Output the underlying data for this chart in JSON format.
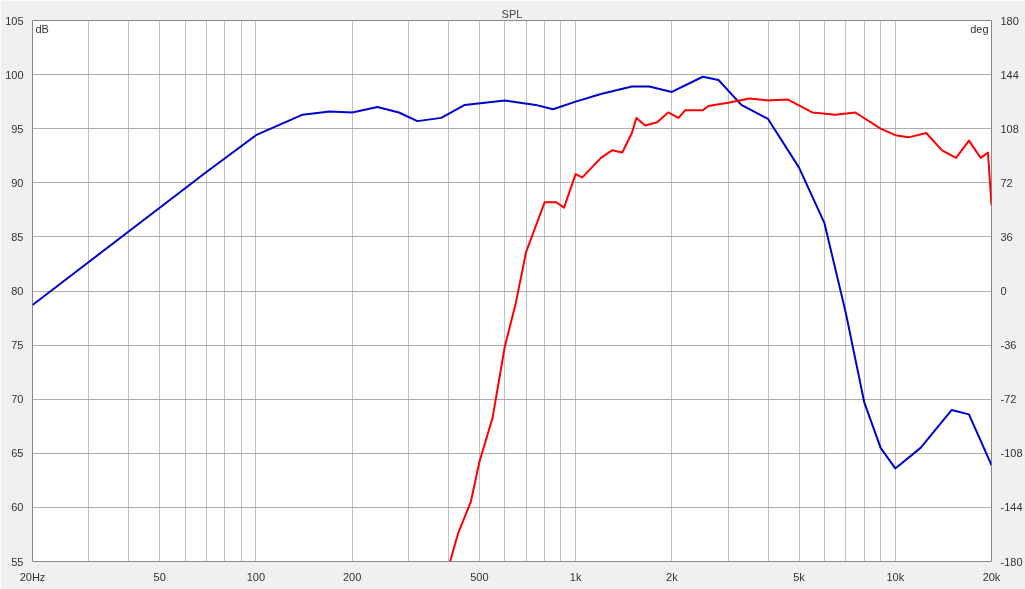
{
  "chart_data": {
    "type": "line",
    "title": "SPL",
    "ylabel": "dB",
    "y2label": "deg",
    "log": "x",
    "grid": true,
    "xlim": [
      20,
      20000
    ],
    "xticks": [
      {
        "value": 20,
        "label": "20Hz"
      },
      {
        "value": 30,
        "label": null
      },
      {
        "value": 40,
        "label": null
      },
      50,
      {
        "value": 60,
        "label": null
      },
      {
        "value": 70,
        "label": null
      },
      {
        "value": 80,
        "label": null
      },
      {
        "value": 90,
        "label": null
      },
      100,
      200,
      {
        "value": 300,
        "label": null
      },
      {
        "value": 400,
        "label": null
      },
      500,
      {
        "value": 600,
        "label": null
      },
      {
        "value": 700,
        "label": null
      },
      {
        "value": 800,
        "label": null
      },
      {
        "value": 900,
        "label": null
      },
      {
        "value": 1000,
        "label": "1k"
      },
      {
        "value": 2000,
        "label": "2k"
      },
      {
        "value": 3000,
        "label": null
      },
      {
        "value": 4000,
        "label": null
      },
      {
        "value": 5000,
        "label": "5k"
      },
      {
        "value": 6000,
        "label": null
      },
      {
        "value": 7000,
        "label": null
      },
      {
        "value": 8000,
        "label": null
      },
      {
        "value": 9000,
        "label": null
      },
      {
        "value": 10000,
        "label": "10k"
      },
      {
        "value": 20000,
        "label": "20k"
      }
    ],
    "ylim": [
      55,
      105
    ],
    "yticks": [
      55,
      60,
      65,
      70,
      75,
      80,
      85,
      90,
      95,
      100,
      105
    ],
    "y2lim": [
      -180,
      180
    ],
    "y2ticks": [
      -180,
      -144,
      -108,
      -72,
      -36,
      0,
      36,
      72,
      108,
      144,
      180
    ],
    "series": [
      {
        "color": "#0000cc",
        "x": [
          20,
          50,
          70,
          100,
          140,
          170,
          200,
          240,
          280,
          320,
          380,
          450,
          600,
          750,
          850,
          1000,
          1200,
          1500,
          1700,
          2000,
          2500,
          2800,
          3300,
          4000,
          5000,
          6000,
          7000,
          8000,
          9000,
          10000,
          12000,
          15000,
          17000,
          20000
        ],
        "values": [
          78.7,
          87.7,
          91.0,
          94.4,
          96.3,
          96.6,
          96.5,
          97.0,
          96.5,
          95.7,
          96.0,
          97.2,
          97.6,
          97.2,
          96.8,
          97.5,
          98.2,
          98.9,
          98.9,
          98.4,
          99.8,
          99.5,
          97.2,
          95.9,
          91.4,
          86.3,
          78.0,
          69.7,
          65.5,
          63.6,
          65.5,
          69.0,
          68.6,
          63.9
        ]
      },
      {
        "color": "#ff0000",
        "x": [
          405,
          430,
          470,
          500,
          550,
          600,
          650,
          700,
          800,
          870,
          920,
          1000,
          1050,
          1200,
          1300,
          1400,
          1500,
          1550,
          1650,
          1800,
          1950,
          2100,
          2200,
          2500,
          2600,
          3000,
          3500,
          4000,
          4600,
          5500,
          6500,
          7500,
          9000,
          10000,
          11000,
          12500,
          14000,
          15500,
          17000,
          18500,
          19500,
          20000
        ],
        "values": [
          55.0,
          57.7,
          60.5,
          64.2,
          68.3,
          74.8,
          78.9,
          83.6,
          88.2,
          88.2,
          87.7,
          90.8,
          90.5,
          92.3,
          93.0,
          92.8,
          94.6,
          96.0,
          95.3,
          95.6,
          96.5,
          96.0,
          96.7,
          96.7,
          97.1,
          97.4,
          97.8,
          97.6,
          97.7,
          96.5,
          96.3,
          96.5,
          95.0,
          94.4,
          94.2,
          94.6,
          93.0,
          92.3,
          93.9,
          92.3,
          92.8,
          87.9
        ]
      }
    ]
  }
}
